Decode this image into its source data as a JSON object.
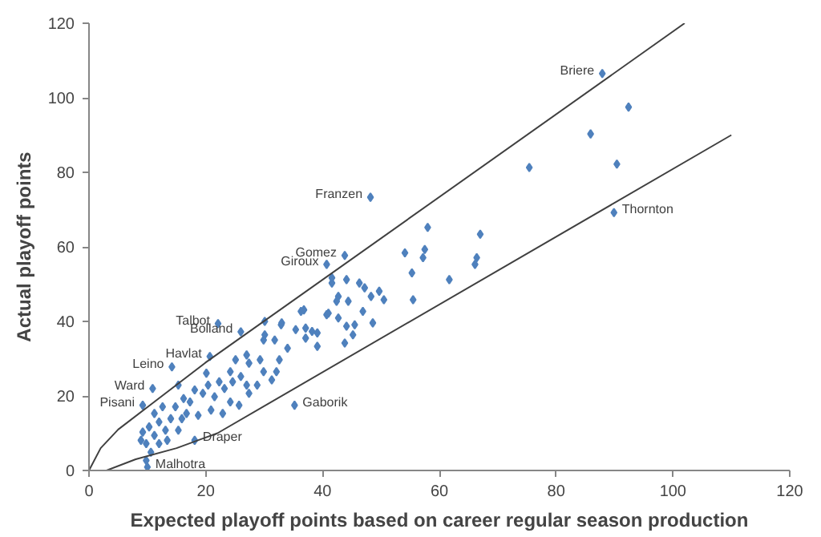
{
  "chart_data": {
    "type": "scatter",
    "xlabel": "Expected playoff points based on career regular season production",
    "ylabel": "Actual playoff points",
    "xlim": [
      0,
      120
    ],
    "ylim": [
      0,
      120
    ],
    "xticks": [
      0,
      20,
      40,
      60,
      80,
      100,
      120
    ],
    "yticks": [
      0,
      20,
      40,
      60,
      80,
      100,
      120
    ],
    "grid": false,
    "series": [
      {
        "color": "#4f81bd",
        "marker": "diamond",
        "x": [
          87.9,
          89.9,
          92.4,
          85.9,
          90.4,
          75.4,
          48.2,
          43.8,
          40.7,
          22.1,
          26,
          20.7,
          14.2,
          10.9,
          9.2,
          35.2,
          18.1,
          10,
          58,
          67,
          57.5,
          54.1,
          57.2,
          66.4,
          66.1,
          55.3,
          61.7,
          55.5,
          41.6,
          41.6,
          44.1,
          46.3,
          47.2,
          48.3,
          49.7,
          50.5,
          42.7,
          42.4,
          44.4,
          36.3,
          40.7,
          42.7,
          46.9,
          48.6,
          44.1,
          45.5,
          45.2,
          30.1,
          32.9,
          37.1,
          39.1,
          43.8,
          33,
          35.4,
          38.2,
          36.8,
          41,
          29.9,
          31.8,
          34,
          37.1,
          39.1,
          27,
          27.4,
          25.1,
          24.2,
          26,
          24.6,
          27,
          29.3,
          29.9,
          28.8,
          32.6,
          32.1,
          31.3,
          27.4,
          25.7,
          23.2,
          22.3,
          21.5,
          20.4,
          19.5,
          20.9,
          24.2,
          22.9,
          20.1,
          18.1,
          17.3,
          16.7,
          15.9,
          18.7,
          14.8,
          14,
          15.3,
          13.1,
          12,
          11.2,
          10.3,
          9.2,
          9.8,
          10.6,
          12,
          13.4,
          11.2,
          12.6,
          16.2,
          15.3,
          9.8,
          8.9,
          30.1
        ],
        "values": [
          106.5,
          69.2,
          97.5,
          90.3,
          82.2,
          81.3,
          73.3,
          57.7,
          55.3,
          39.4,
          37.2,
          30.6,
          27.8,
          22,
          17.5,
          17.5,
          8.1,
          0.9,
          65.2,
          63.4,
          59.3,
          58.4,
          57.1,
          57.1,
          55.3,
          53,
          51.2,
          45.8,
          51.7,
          50.3,
          51.2,
          50.3,
          49,
          46.7,
          48.1,
          45.8,
          46.7,
          45.4,
          45.4,
          42.7,
          41.8,
          40.9,
          42.7,
          39.6,
          38.7,
          39.1,
          36.4,
          40,
          39.1,
          38.2,
          36.9,
          34.2,
          39.6,
          37.8,
          37.3,
          43.1,
          42.2,
          35,
          35,
          32.8,
          35.5,
          33.3,
          31,
          28.8,
          29.7,
          26.5,
          25.2,
          23.8,
          22.9,
          29.7,
          26.5,
          22.9,
          29.7,
          26.5,
          24.3,
          20.7,
          17.5,
          22,
          23.8,
          19.8,
          22.9,
          20.7,
          16.2,
          18.4,
          15.3,
          26.1,
          21.6,
          18.4,
          15.3,
          13.9,
          14.8,
          17.1,
          13.9,
          10.8,
          10.8,
          13,
          9.4,
          11.7,
          10.3,
          7.2,
          4.9,
          7.2,
          8.1,
          15.3,
          17.1,
          19.3,
          22.9,
          2.7,
          8.1,
          36.4
        ]
      },
      {
        "type": "line",
        "color": "#404040",
        "marker": "none",
        "x": [
          0,
          2,
          5,
          10,
          20,
          102
        ],
        "values": [
          0,
          6,
          11,
          17,
          29,
          120
        ]
      },
      {
        "type": "line",
        "color": "#404040",
        "marker": "none",
        "x": [
          3,
          8,
          15,
          22,
          110
        ],
        "values": [
          0,
          3,
          6,
          10,
          90
        ]
      }
    ],
    "annotations": [
      {
        "text": "Briere",
        "x": 87.9,
        "y": 106.5
      },
      {
        "text": "Thornton",
        "x": 89.9,
        "y": 69.2
      },
      {
        "text": "Franzen",
        "x": 48.2,
        "y": 73.3
      },
      {
        "text": "Gomez",
        "x": 43.8,
        "y": 57.7
      },
      {
        "text": "Giroux",
        "x": 40.7,
        "y": 55.3
      },
      {
        "text": "Talbot",
        "x": 22.1,
        "y": 39.4
      },
      {
        "text": "Bolland",
        "x": 26,
        "y": 37.2
      },
      {
        "text": "Havlat",
        "x": 20.7,
        "y": 30.6
      },
      {
        "text": "Leino",
        "x": 14.2,
        "y": 27.8
      },
      {
        "text": "Ward",
        "x": 10.9,
        "y": 22
      },
      {
        "text": "Pisani",
        "x": 9.2,
        "y": 17.5
      },
      {
        "text": "Gaborik",
        "x": 35.2,
        "y": 17.5
      },
      {
        "text": "Draper",
        "x": 18.1,
        "y": 8.1
      },
      {
        "text": "Malhotra",
        "x": 10,
        "y": 0.9
      }
    ]
  }
}
